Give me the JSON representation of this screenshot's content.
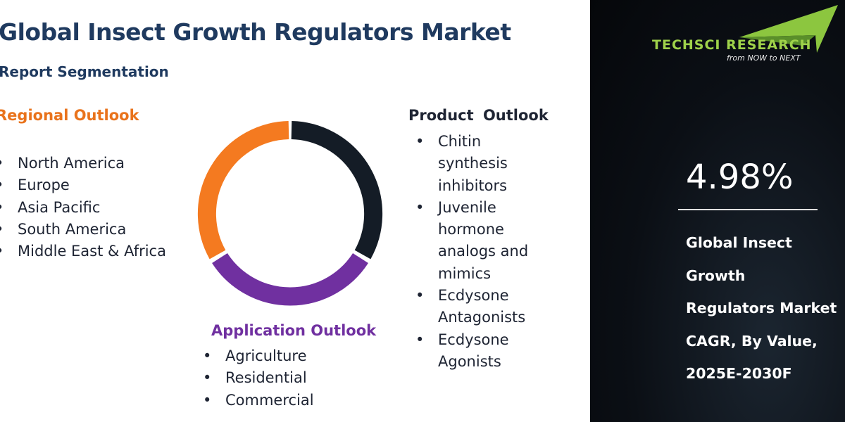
{
  "header": {
    "title": "Global Insect Growth Regulators Market",
    "subtitle": "Report Segmentation"
  },
  "regional": {
    "title": "Regional Outlook",
    "items": [
      "North America",
      "Europe",
      "Asia Pacific",
      "South America",
      "Middle East & Africa"
    ]
  },
  "product": {
    "title": "Product Outlook",
    "items": [
      "Chitin synthesis inhibitors",
      "Juvenile hormone analogs and mimics",
      "Ecdysone Antagonists",
      "Ecdysone Agonists"
    ]
  },
  "application": {
    "title": "Application Outlook",
    "items": [
      "Agriculture",
      "Residential",
      "Commercial"
    ]
  },
  "sidebar": {
    "brand": "TECHSCI RESEARCH",
    "tagline": "from NOW to NEXT",
    "stat": "4.98%",
    "caption": "Global Insect Growth Regulators Market CAGR, By Value, 2025E-2030F"
  }
}
